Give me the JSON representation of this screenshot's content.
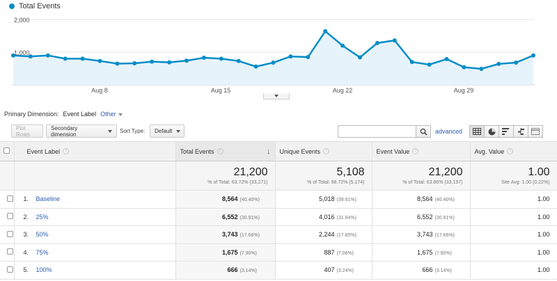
{
  "chart": {
    "legend": "Total Events",
    "ytick_labels": [
      "2,000",
      "1,000"
    ],
    "xtick_labels": [
      "Aug 8",
      "Aug 15",
      "Aug 22",
      "Aug 29"
    ],
    "color": "#058dc7",
    "fill": "#e7f3fa",
    "chart_data": {
      "type": "area",
      "series": [
        {
          "name": "Total Events",
          "values": [
            900,
            870,
            900,
            800,
            800,
            730,
            650,
            660,
            710,
            690,
            740,
            830,
            800,
            730,
            560,
            680,
            870,
            850,
            1640,
            1200,
            840,
            1280,
            1360,
            700,
            620,
            790,
            540,
            490,
            640,
            680,
            900
          ]
        }
      ],
      "ylim": [
        0,
        2000
      ],
      "grid": true
    }
  },
  "primary_dimension": {
    "label": "Primary Dimension:",
    "active": "Event Label",
    "other": "Other"
  },
  "toolbar": {
    "plot_rows": "Plot Rows",
    "secondary_dimension": "Secondary dimension",
    "sort_type_label": "Sort Type:",
    "sort_type_value": "Default",
    "search_placeholder": "",
    "advanced": "advanced"
  },
  "table": {
    "headers": {
      "event_label": "Event Label",
      "total_events": "Total Events",
      "unique_events": "Unique Events",
      "event_value": "Event Value",
      "avg_value": "Avg. Value"
    },
    "totals": {
      "total_events": "21,200",
      "total_events_sub": "% of Total: 63.72% (33,271)",
      "unique_events": "5,108",
      "unique_events_sub": "% of Total: 98.72% (5,174)",
      "event_value": "21,200",
      "event_value_sub": "% of Total: 63.86% (33,197)",
      "avg_value": "1.00",
      "avg_value_sub": "Site Avg: 1.00 (0.22%)"
    },
    "rows": [
      {
        "idx": "1.",
        "label": "Baseline",
        "total": "8,564",
        "total_pct": "(40.40%)",
        "unique": "5,018",
        "unique_pct": "(39.91%)",
        "value": "8,564",
        "value_pct": "(40.40%)",
        "avg": "1.00"
      },
      {
        "idx": "2.",
        "label": "25%",
        "total": "6,552",
        "total_pct": "(30.91%)",
        "unique": "4,016",
        "unique_pct": "(31.94%)",
        "value": "6,552",
        "value_pct": "(30.91%)",
        "avg": "1.00"
      },
      {
        "idx": "3.",
        "label": "50%",
        "total": "3,743",
        "total_pct": "(17.66%)",
        "unique": "2,244",
        "unique_pct": "(17.85%)",
        "value": "3,743",
        "value_pct": "(17.66%)",
        "avg": "1.00"
      },
      {
        "idx": "4.",
        "label": "75%",
        "total": "1,675",
        "total_pct": "(7.90%)",
        "unique": "887",
        "unique_pct": "(7.06%)",
        "value": "1,675",
        "value_pct": "(7.90%)",
        "avg": "1.00"
      },
      {
        "idx": "5.",
        "label": "100%",
        "total": "666",
        "total_pct": "(3.14%)",
        "unique": "407",
        "unique_pct": "(3.24%)",
        "value": "666",
        "value_pct": "(3.14%)",
        "avg": "1.00"
      }
    ]
  }
}
